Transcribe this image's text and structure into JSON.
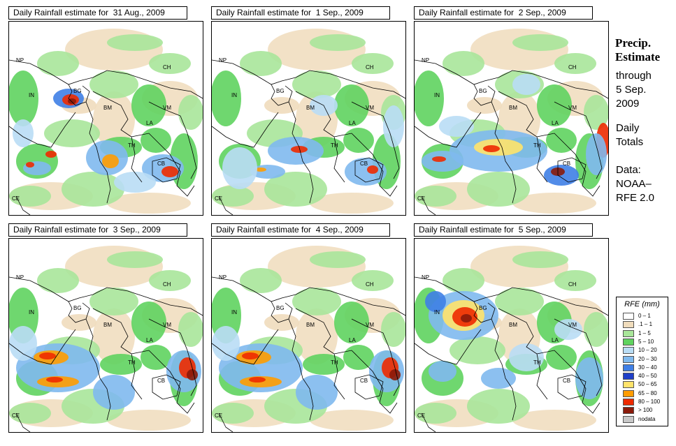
{
  "panels": [
    {
      "title": "Daily Rainfall estimate for  31 Aug., 2009",
      "intensity": "high-coastal"
    },
    {
      "title": "Daily Rainfall estimate for  1 Sep., 2009",
      "intensity": "moderate"
    },
    {
      "title": "Daily Rainfall estimate for  2 Sep., 2009",
      "intensity": "high-south"
    },
    {
      "title": "Daily Rainfall estimate for  3 Sep., 2009",
      "intensity": "high-bay-and-vietnam"
    },
    {
      "title": "Daily Rainfall estimate for  4 Sep., 2009",
      "intensity": "high-bay-and-vietnam"
    },
    {
      "title": "Daily Rainfall estimate for  5 Sep., 2009",
      "intensity": "very-high-bangladesh"
    }
  ],
  "country_labels": [
    "NP",
    "CH",
    "IN",
    "BG",
    "BM",
    "VM",
    "LA",
    "TH",
    "CB",
    "CE"
  ],
  "sidebar": {
    "title_line1": "Precip.",
    "title_line2": "Estimate",
    "through": "through",
    "date_line1": "5 Sep.",
    "date_line2": "2009",
    "daily_line1": "Daily",
    "daily_line2": "Totals",
    "data_line1": "Data:",
    "data_line2": "NOAA–",
    "data_line3": "RFE 2.0"
  },
  "legend": {
    "title": "RFE (mm)",
    "items": [
      {
        "label": "0 – 1",
        "color": "#ffffff"
      },
      {
        "label": ".1 – 1",
        "color": "#f0dcbc"
      },
      {
        "label": "1 – 5",
        "color": "#a9e69a"
      },
      {
        "label": "5 – 10",
        "color": "#5fd35f"
      },
      {
        "label": "10 – 20",
        "color": "#b9ddf5"
      },
      {
        "label": "20 – 30",
        "color": "#7fb9ee"
      },
      {
        "label": "30 – 40",
        "color": "#3f7fe6"
      },
      {
        "label": "40 – 50",
        "color": "#1f3fc8"
      },
      {
        "label": "50 – 65",
        "color": "#ffe36a"
      },
      {
        "label": "65 – 80",
        "color": "#ff9c00"
      },
      {
        "label": "80 – 100",
        "color": "#ee2a00"
      },
      {
        "label": "> 100",
        "color": "#8a1a0a"
      },
      {
        "label": "nodata",
        "color": "#c8c8c8"
      }
    ]
  }
}
